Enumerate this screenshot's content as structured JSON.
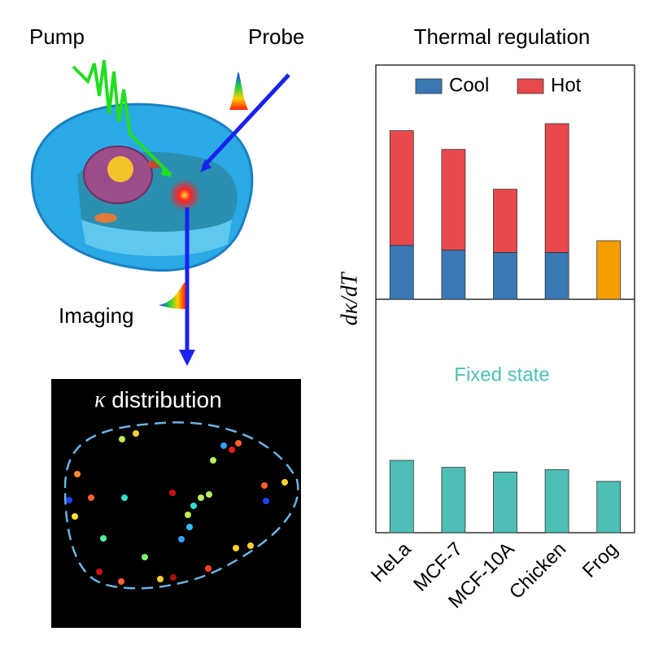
{
  "illustration": {
    "pump": "Pump",
    "probe": "Probe",
    "imaging": "Imaging",
    "kappa": "κ",
    "distribution": "distribution"
  },
  "chart_data": {
    "type": "bar",
    "title": "Thermal regulation",
    "ylabel": "dκ/dT",
    "stacked": true,
    "categories": [
      "HeLa",
      "MCF-7",
      "MCF-10A",
      "Chicken",
      "Frog"
    ],
    "ylim": [
      0,
      10
    ],
    "series": [
      {
        "name": "Cool",
        "color": "#3a78b5",
        "values": [
          2.3,
          2.1,
          2.0,
          2.0,
          2.5
        ],
        "colors": [
          "#3a78b5",
          "#3a78b5",
          "#3a78b5",
          "#3a78b5",
          "#f59c00"
        ],
        "panel": "top"
      },
      {
        "name": "Hot",
        "color": "#e8494d",
        "values": [
          4.9,
          4.3,
          2.7,
          5.5,
          null
        ],
        "panel": "top"
      },
      {
        "name": "Fixed state",
        "color": "#4dbfb4",
        "values": [
          3.1,
          2.8,
          2.6,
          2.7,
          2.2
        ],
        "panel": "bottom"
      }
    ]
  }
}
